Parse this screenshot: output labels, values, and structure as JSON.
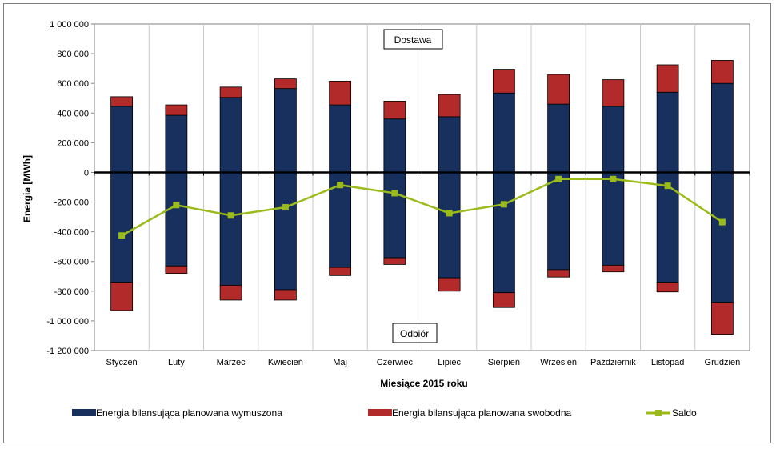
{
  "chart_data": {
    "type": "bar",
    "categories": [
      "Styczeń",
      "Luty",
      "Marzec",
      "Kwiecień",
      "Maj",
      "Czerwiec",
      "Lipiec",
      "Sierpień",
      "Wrzesień",
      "Październik",
      "Listopad",
      "Grudzień"
    ],
    "series": [
      {
        "name": "Energia bilansująca planowana wymuszona",
        "color": "#17305E",
        "positive": [
          445000,
          385000,
          505000,
          565000,
          455000,
          360000,
          375000,
          535000,
          460000,
          445000,
          540000,
          600000
        ],
        "negative": [
          -740000,
          -630000,
          -760000,
          -790000,
          -640000,
          -575000,
          -710000,
          -810000,
          -655000,
          -625000,
          -740000,
          -875000
        ]
      },
      {
        "name": "Energia bilansująca planowana swobodna",
        "color": "#B22A2A",
        "positive": [
          65000,
          70000,
          70000,
          65000,
          160000,
          120000,
          150000,
          160000,
          200000,
          180000,
          185000,
          155000
        ],
        "negative": [
          -190000,
          -50000,
          -100000,
          -70000,
          -55000,
          -45000,
          -90000,
          -100000,
          -50000,
          -45000,
          -65000,
          -215000
        ]
      },
      {
        "name": "Saldo",
        "color": "#9BBB1A",
        "values": [
          -425000,
          -220000,
          -290000,
          -235000,
          -85000,
          -140000,
          -275000,
          -215000,
          -45000,
          -45000,
          -90000,
          -335000
        ]
      }
    ],
    "xlabel": "Miesiące 2015 roku",
    "ylabel": "Energia [MWh]",
    "ylim": [
      -1200000,
      1000000
    ],
    "yticks": [
      1000000,
      800000,
      600000,
      400000,
      200000,
      0,
      -200000,
      -400000,
      -600000,
      -800000,
      -1000000,
      -1200000
    ],
    "ytick_labels": [
      "1 000 000",
      "800 000",
      "600 000",
      "400 000",
      "200 000",
      "0",
      "-200 000",
      "-400 000",
      "-600 000",
      "-800 000",
      "-1 000 000",
      "-1 200 000"
    ],
    "annotations": {
      "top": "Dostawa",
      "bottom": "Odbiór"
    },
    "grid": "vertical",
    "legend_position": "bottom"
  }
}
